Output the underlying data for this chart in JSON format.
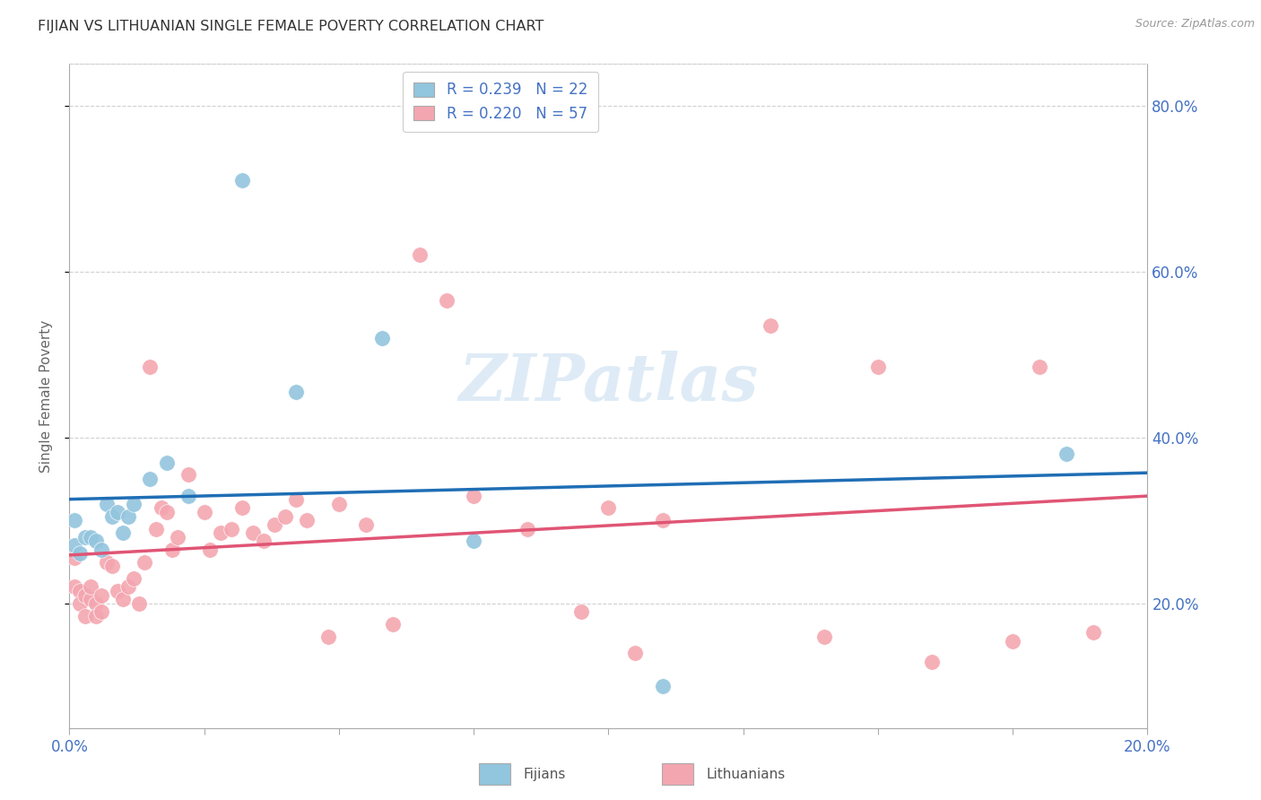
{
  "title": "FIJIAN VS LITHUANIAN SINGLE FEMALE POVERTY CORRELATION CHART",
  "source": "Source: ZipAtlas.com",
  "ylabel": "Single Female Poverty",
  "xlim": [
    0.0,
    0.2
  ],
  "ylim": [
    0.05,
    0.85
  ],
  "legend_fijians": "R = 0.239   N = 22",
  "legend_lithuanians": "R = 0.220   N = 57",
  "fijian_color": "#92c5de",
  "lithuanian_color": "#f4a6b0",
  "fijian_line_color": "#1f6eb5",
  "lithuanian_line_color": "#e05575",
  "background_color": "#ffffff",
  "grid_color": "#d0d0d0",
  "fijian_R": 0.239,
  "lithuanian_R": 0.22,
  "fijian_intercept": 0.275,
  "fijian_slope": 0.7,
  "lithuanian_intercept": 0.245,
  "lithuanian_slope": 0.6,
  "fijian_x": [
    0.001,
    0.001,
    0.002,
    0.003,
    0.004,
    0.005,
    0.006,
    0.007,
    0.008,
    0.009,
    0.01,
    0.011,
    0.012,
    0.015,
    0.018,
    0.022,
    0.032,
    0.042,
    0.058,
    0.075,
    0.11,
    0.185
  ],
  "fijian_y": [
    0.27,
    0.3,
    0.26,
    0.28,
    0.28,
    0.275,
    0.265,
    0.32,
    0.305,
    0.31,
    0.285,
    0.305,
    0.32,
    0.35,
    0.37,
    0.33,
    0.71,
    0.455,
    0.52,
    0.275,
    0.1,
    0.38
  ],
  "lithuanian_x": [
    0.001,
    0.001,
    0.002,
    0.002,
    0.003,
    0.003,
    0.004,
    0.004,
    0.005,
    0.005,
    0.006,
    0.006,
    0.007,
    0.008,
    0.009,
    0.01,
    0.011,
    0.012,
    0.013,
    0.014,
    0.015,
    0.016,
    0.017,
    0.018,
    0.019,
    0.02,
    0.022,
    0.025,
    0.026,
    0.028,
    0.03,
    0.032,
    0.034,
    0.036,
    0.038,
    0.04,
    0.042,
    0.044,
    0.048,
    0.05,
    0.055,
    0.06,
    0.065,
    0.07,
    0.075,
    0.085,
    0.095,
    0.1,
    0.105,
    0.11,
    0.13,
    0.14,
    0.15,
    0.16,
    0.175,
    0.18,
    0.19
  ],
  "lithuanian_y": [
    0.255,
    0.22,
    0.215,
    0.2,
    0.21,
    0.185,
    0.205,
    0.22,
    0.2,
    0.185,
    0.21,
    0.19,
    0.25,
    0.245,
    0.215,
    0.205,
    0.22,
    0.23,
    0.2,
    0.25,
    0.485,
    0.29,
    0.315,
    0.31,
    0.265,
    0.28,
    0.355,
    0.31,
    0.265,
    0.285,
    0.29,
    0.315,
    0.285,
    0.275,
    0.295,
    0.305,
    0.325,
    0.3,
    0.16,
    0.32,
    0.295,
    0.175,
    0.62,
    0.565,
    0.33,
    0.29,
    0.19,
    0.315,
    0.14,
    0.3,
    0.535,
    0.16,
    0.485,
    0.13,
    0.155,
    0.485,
    0.165
  ],
  "watermark_text": "ZIPatlas",
  "yticks": [
    0.2,
    0.4,
    0.6,
    0.8
  ],
  "ytick_labels": [
    "20.0%",
    "40.0%",
    "60.0%",
    "80.0%"
  ],
  "xtick_label_left": "0.0%",
  "xtick_label_right": "20.0%"
}
